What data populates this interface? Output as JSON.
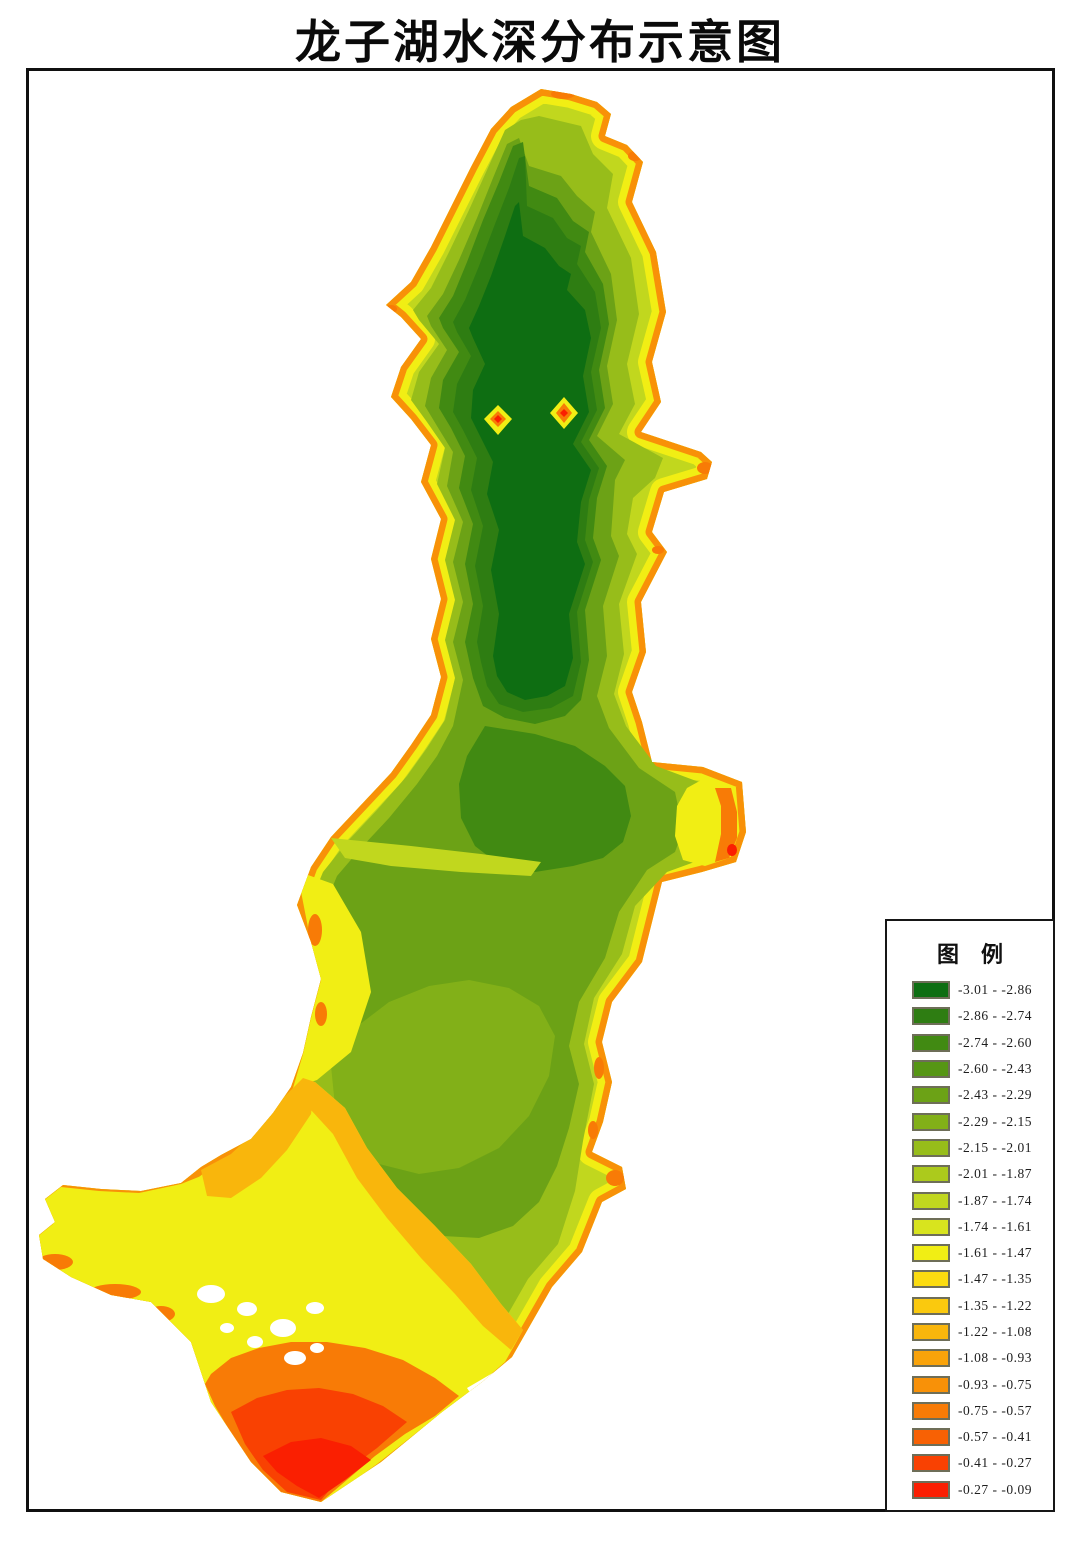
{
  "page": {
    "title": "龙子湖水深分布示意图",
    "background": "#ffffff",
    "frame_color": "#101010"
  },
  "legend": {
    "title": "图　例",
    "swatch_border_color": "#6E6E58",
    "text_color": "#1e1e1e",
    "items": [
      {
        "range": "-3.01 - -2.86",
        "color": "#0E6E12"
      },
      {
        "range": "-2.86 - -2.74",
        "color": "#2E7D12"
      },
      {
        "range": "-2.74 - -2.60",
        "color": "#418A12"
      },
      {
        "range": "-2.60 - -2.43",
        "color": "#569614"
      },
      {
        "range": "-2.43 - -2.29",
        "color": "#6CA216"
      },
      {
        "range": "-2.29 - -2.15",
        "color": "#82B018"
      },
      {
        "range": "-2.15 - -2.01",
        "color": "#97BD1A"
      },
      {
        "range": "-2.01 - -1.87",
        "color": "#ACCA1C"
      },
      {
        "range": "-1.87 - -1.74",
        "color": "#C1D71E"
      },
      {
        "range": "-1.74 - -1.61",
        "color": "#D8E41E"
      },
      {
        "range": "-1.61 - -1.47",
        "color": "#F1EE14"
      },
      {
        "range": "-1.47 - -1.35",
        "color": "#FBDC10"
      },
      {
        "range": "-1.35 - -1.22",
        "color": "#FAC90E"
      },
      {
        "range": "-1.22 - -1.08",
        "color": "#F9B60C"
      },
      {
        "range": "-1.08 - -0.93",
        "color": "#F9A30A"
      },
      {
        "range": "-0.93 - -0.75",
        "color": "#F89108"
      },
      {
        "range": "-0.75 - -0.57",
        "color": "#F87B06"
      },
      {
        "range": "-0.57 - -0.41",
        "color": "#F86104"
      },
      {
        "range": "-0.41 - -0.27",
        "color": "#F94102"
      },
      {
        "range": "-0.27 - -0.09",
        "color": "#FA1F01"
      }
    ]
  }
}
